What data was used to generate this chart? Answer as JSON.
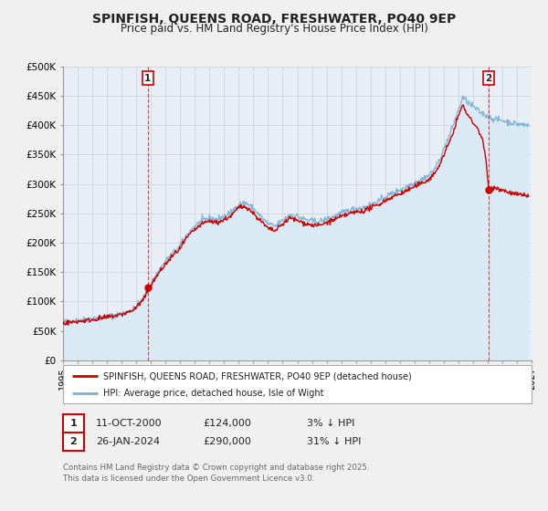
{
  "title": "SPINFISH, QUEENS ROAD, FRESHWATER, PO40 9EP",
  "subtitle": "Price paid vs. HM Land Registry's House Price Index (HPI)",
  "xlim": [
    1995.0,
    2027.0
  ],
  "ylim": [
    0,
    500000
  ],
  "yticks": [
    0,
    50000,
    100000,
    150000,
    200000,
    250000,
    300000,
    350000,
    400000,
    450000,
    500000
  ],
  "ytick_labels": [
    "£0",
    "£50K",
    "£100K",
    "£150K",
    "£200K",
    "£250K",
    "£300K",
    "£350K",
    "£400K",
    "£450K",
    "£500K"
  ],
  "xticks": [
    1995,
    1996,
    1997,
    1998,
    1999,
    2000,
    2001,
    2002,
    2003,
    2004,
    2005,
    2006,
    2007,
    2008,
    2009,
    2010,
    2011,
    2012,
    2013,
    2014,
    2015,
    2016,
    2017,
    2018,
    2019,
    2020,
    2021,
    2022,
    2023,
    2024,
    2025,
    2026,
    2027
  ],
  "property_color": "#cc0000",
  "hpi_color": "#7ab0d4",
  "hpi_fill_color": "#daeaf5",
  "marker1_x": 2000.79,
  "marker1_y": 124000,
  "marker2_x": 2024.07,
  "marker2_y": 290000,
  "vline1_x": 2000.79,
  "vline2_x": 2024.07,
  "legend_label1": "SPINFISH, QUEENS ROAD, FRESHWATER, PO40 9EP (detached house)",
  "legend_label2": "HPI: Average price, detached house, Isle of Wight",
  "table_row1": [
    "1",
    "11-OCT-2000",
    "£124,000",
    "3% ↓ HPI"
  ],
  "table_row2": [
    "2",
    "26-JAN-2024",
    "£290,000",
    "31% ↓ HPI"
  ],
  "footnote": "Contains HM Land Registry data © Crown copyright and database right 2025.\nThis data is licensed under the Open Government Licence v3.0.",
  "bg_color": "#f0f0f0",
  "plot_bg_color": "#e8eef5",
  "grid_color": "#c8d0d8",
  "title_fontsize": 10,
  "subtitle_fontsize": 8.5,
  "tick_fontsize": 7.5
}
